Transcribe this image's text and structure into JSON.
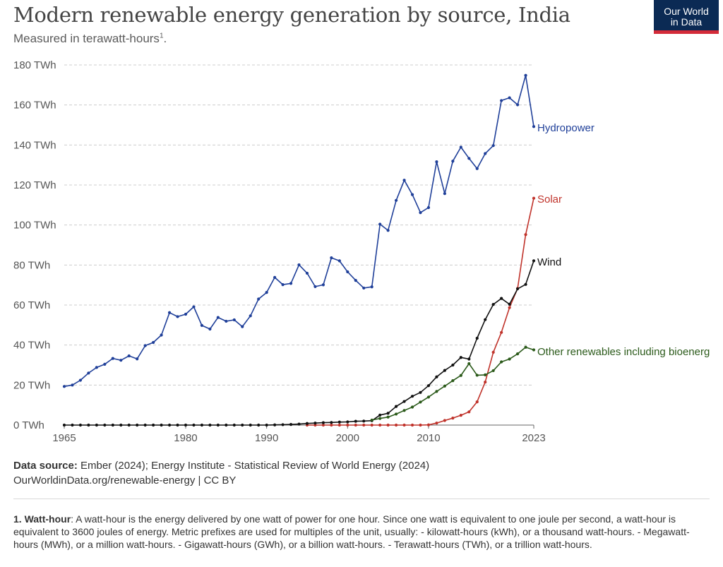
{
  "header": {
    "title": "Modern renewable energy generation by source, India",
    "subtitle": "Measured in terawatt-hours",
    "subtitle_sup": "1",
    "subtitle_end": ".",
    "logo_line1": "Our World",
    "logo_line2": "in Data"
  },
  "footer": {
    "source_label": "Data source:",
    "source_text": " Ember (2024); Energy Institute - Statistical Review of World Energy (2024)",
    "source_url": "OurWorldinData.org/renewable-energy | CC BY",
    "note_label": "1. Watt-hour",
    "note_text": ": A watt-hour is the energy delivered by one watt of power for one hour. Since one watt is equivalent to one joule per second, a watt-hour is equivalent to 3600 joules of energy. Metric prefixes are used for multiples of the unit, usually: - kilowatt-hours (kWh), or a thousand watt-hours. - Megawatt-hours (MWh), or a million watt-hours. - Gigawatt-hours (GWh), or a billion watt-hours. - Terawatt-hours (TWh), or a trillion watt-hours."
  },
  "colors": {
    "hydropower": "#1f3f99",
    "solar": "#c0332b",
    "wind": "#111111",
    "other": "#2b5a1a",
    "grid": "#cccccc",
    "axis": "#666666"
  },
  "chart_data": {
    "type": "line",
    "xlim": [
      1965,
      2023
    ],
    "ylim": [
      0,
      180
    ],
    "yticks": [
      0,
      20,
      40,
      60,
      80,
      100,
      120,
      140,
      160,
      180
    ],
    "ytick_labels": [
      "0 TWh",
      "20 TWh",
      "40 TWh",
      "60 TWh",
      "80 TWh",
      "100 TWh",
      "120 TWh",
      "140 TWh",
      "160 TWh",
      "180 TWh"
    ],
    "xticks": [
      1965,
      1980,
      1990,
      2000,
      2010,
      2023
    ],
    "xtick_labels": [
      "1965",
      "1980",
      "1990",
      "2000",
      "2010",
      "2023"
    ],
    "grid": "horizontal-dashed",
    "legend": "inline-right",
    "series": [
      {
        "name": "Hydropower",
        "color_key": "hydropower",
        "x": [
          1965,
          1966,
          1967,
          1968,
          1969,
          1970,
          1971,
          1972,
          1973,
          1974,
          1975,
          1976,
          1977,
          1978,
          1979,
          1980,
          1981,
          1982,
          1983,
          1984,
          1985,
          1986,
          1987,
          1988,
          1989,
          1990,
          1991,
          1992,
          1993,
          1994,
          1995,
          1996,
          1997,
          1998,
          1999,
          2000,
          2001,
          2002,
          2003,
          2004,
          2005,
          2006,
          2007,
          2008,
          2009,
          2010,
          2011,
          2012,
          2013,
          2014,
          2015,
          2016,
          2017,
          2018,
          2019,
          2020,
          2021,
          2022,
          2023
        ],
        "values": [
          19.3,
          20.0,
          22.4,
          26.0,
          28.8,
          30.4,
          33.3,
          32.4,
          34.6,
          33.1,
          39.7,
          41.3,
          45.0,
          56.2,
          54.2,
          55.4,
          59.1,
          49.8,
          48.0,
          53.8,
          51.9,
          52.6,
          49.2,
          54.6,
          63.0,
          66.3,
          73.8,
          70.2,
          70.8,
          80.1,
          75.9,
          69.2,
          70.1,
          83.6,
          82.1,
          76.6,
          72.3,
          68.5,
          69.1,
          100.4,
          97.3,
          112.3,
          122.4,
          115.2,
          106.2,
          108.7,
          131.6,
          115.7,
          131.9,
          138.9,
          133.3,
          128.2,
          135.7,
          139.7,
          162.2,
          163.6,
          160.1,
          174.8,
          149.2
        ]
      },
      {
        "name": "Solar",
        "color_key": "solar",
        "x": [
          1995,
          1996,
          1997,
          1998,
          1999,
          2000,
          2001,
          2002,
          2003,
          2004,
          2005,
          2006,
          2007,
          2008,
          2009,
          2010,
          2011,
          2012,
          2013,
          2014,
          2015,
          2016,
          2017,
          2018,
          2019,
          2020,
          2021,
          2022,
          2023
        ],
        "values": [
          0,
          0,
          0,
          0,
          0,
          0,
          0,
          0,
          0,
          0,
          0,
          0,
          0,
          0,
          0,
          0.1,
          1.0,
          2.3,
          3.5,
          4.9,
          6.6,
          11.6,
          21.5,
          36.4,
          46.3,
          58.7,
          68.3,
          95.2,
          113.4
        ]
      },
      {
        "name": "Wind",
        "color_key": "wind",
        "x": [
          1965,
          1966,
          1967,
          1968,
          1969,
          1970,
          1971,
          1972,
          1973,
          1974,
          1975,
          1976,
          1977,
          1978,
          1979,
          1980,
          1981,
          1982,
          1983,
          1984,
          1985,
          1986,
          1987,
          1988,
          1989,
          1990,
          1991,
          1992,
          1993,
          1994,
          1995,
          1996,
          1997,
          1998,
          1999,
          2000,
          2001,
          2002,
          2003,
          2004,
          2005,
          2006,
          2007,
          2008,
          2009,
          2010,
          2011,
          2012,
          2013,
          2014,
          2015,
          2016,
          2017,
          2018,
          2019,
          2020,
          2021,
          2022,
          2023
        ],
        "values": [
          0,
          0,
          0,
          0,
          0,
          0,
          0,
          0,
          0,
          0,
          0,
          0,
          0,
          0,
          0,
          0,
          0,
          0,
          0,
          0,
          0,
          0,
          0,
          0,
          0,
          0,
          0.1,
          0.2,
          0.3,
          0.5,
          0.8,
          1.0,
          1.2,
          1.3,
          1.5,
          1.6,
          1.9,
          2.0,
          2.2,
          5.0,
          5.9,
          9.3,
          11.8,
          14.4,
          16.3,
          19.7,
          24.1,
          27.3,
          30.0,
          33.8,
          33.0,
          43.4,
          52.7,
          60.3,
          63.3,
          60.4,
          68.1,
          70.3,
          82.1
        ]
      },
      {
        "name": "Other renewables including bioenergy",
        "color_key": "other",
        "x": [
          2003,
          2004,
          2005,
          2006,
          2007,
          2008,
          2009,
          2010,
          2011,
          2012,
          2013,
          2014,
          2015,
          2016,
          2017,
          2018,
          2019,
          2020,
          2021,
          2022,
          2023
        ],
        "values": [
          2.5,
          3.3,
          4.0,
          5.5,
          7.3,
          9.0,
          11.5,
          14.0,
          16.8,
          19.5,
          22.2,
          24.8,
          30.7,
          24.9,
          25.1,
          27.2,
          31.6,
          33.0,
          35.6,
          38.9,
          37.6
        ]
      }
    ],
    "labels": [
      "Hydropower",
      "Solar",
      "Wind",
      "Other renewables including bioenerg"
    ]
  }
}
